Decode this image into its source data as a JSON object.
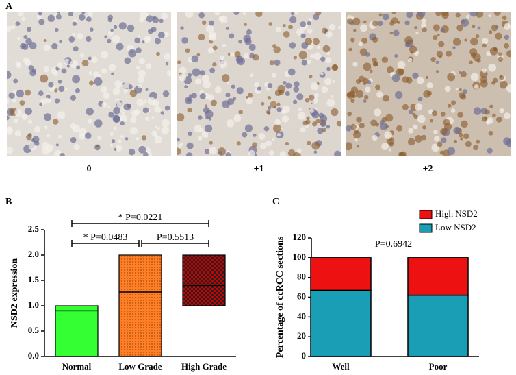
{
  "panels": {
    "a": "A",
    "b": "B",
    "c": "C"
  },
  "images": {
    "labels": [
      "0",
      "+1",
      "+2"
    ]
  },
  "chart_data": [
    {
      "type": "floating-bar",
      "ylabel": "NSD2 expression",
      "categories": [
        "Normal",
        "Low Grade",
        "High Grade"
      ],
      "low": [
        0,
        0,
        1.0
      ],
      "median": [
        0.9,
        1.27,
        1.4
      ],
      "high": [
        1.0,
        2.0,
        2.0
      ],
      "colors": [
        "#33ff33",
        "#ff7f27",
        "#cc0000"
      ],
      "ylim": [
        0,
        2.5
      ],
      "yticks": [
        {
          "value": 0,
          "label": "0.0"
        },
        0.5,
        {
          "value": 1,
          "label": "1.0"
        },
        1.5,
        {
          "value": 2,
          "label": "2.0"
        },
        2.5
      ],
      "annotations": [
        "* P=0.0221",
        "* P=0.0483",
        "P=0.5513"
      ]
    },
    {
      "type": "stacked-bar",
      "ylabel": "Percentage of ccRCC sections",
      "categories": [
        "Well",
        "Poor"
      ],
      "series": [
        {
          "name": "Low NSD2",
          "color": "#1a9eb5",
          "values": [
            67,
            62
          ]
        },
        {
          "name": "High NSD2",
          "color": "#ee1111",
          "values": [
            33,
            38
          ]
        }
      ],
      "ylim": [
        0,
        120
      ],
      "yticks": [
        0,
        20,
        40,
        60,
        80,
        100,
        120
      ],
      "annotations": [
        "P=0.6942"
      ]
    }
  ]
}
